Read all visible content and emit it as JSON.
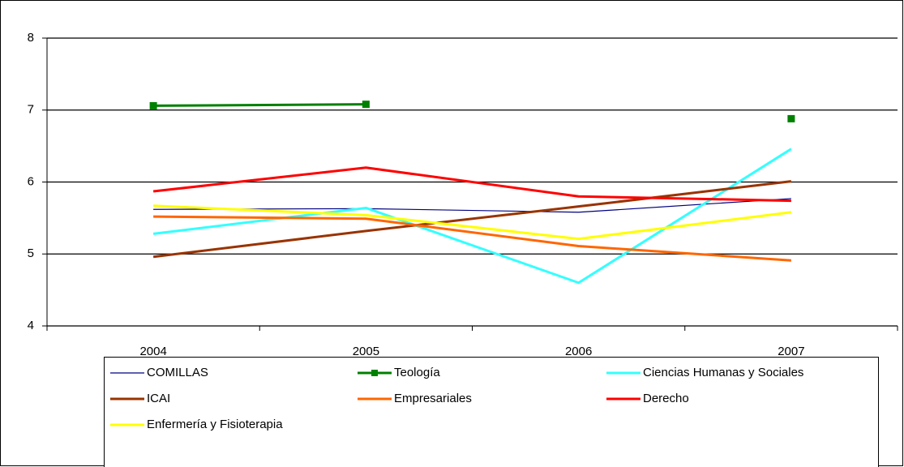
{
  "chart_data": {
    "type": "line",
    "categories": [
      "2004",
      "2005",
      "2006",
      "2007"
    ],
    "series": [
      {
        "name": "COMILLAS",
        "color": "#000080",
        "width": 1.2,
        "values": [
          5.62,
          5.63,
          5.58,
          5.77
        ]
      },
      {
        "name": "Teología",
        "color": "#008000",
        "width": 3,
        "marker": "square",
        "values": [
          7.06,
          7.08,
          null,
          6.88
        ]
      },
      {
        "name": "Ciencias Humanas y Sociales",
        "color": "#33FFFF",
        "width": 3,
        "values": [
          5.28,
          5.64,
          4.6,
          6.46
        ]
      },
      {
        "name": "ICAI",
        "color": "#993300",
        "width": 3,
        "values": [
          4.96,
          5.32,
          5.66,
          6.01
        ]
      },
      {
        "name": "Empresariales",
        "color": "#FF6600",
        "width": 3,
        "values": [
          5.52,
          5.49,
          5.11,
          4.91
        ]
      },
      {
        "name": "Derecho",
        "color": "#FF0000",
        "width": 3,
        "values": [
          5.87,
          6.2,
          5.8,
          5.74
        ]
      },
      {
        "name": "Enfermería y Fisioterapia",
        "color": "#FFFF00",
        "width": 3,
        "values": [
          5.67,
          5.54,
          5.21,
          5.58
        ]
      }
    ],
    "ylim": [
      4,
      8
    ],
    "yticks": [
      4,
      5,
      6,
      7,
      8
    ],
    "grid": true,
    "legend": "bottom"
  }
}
